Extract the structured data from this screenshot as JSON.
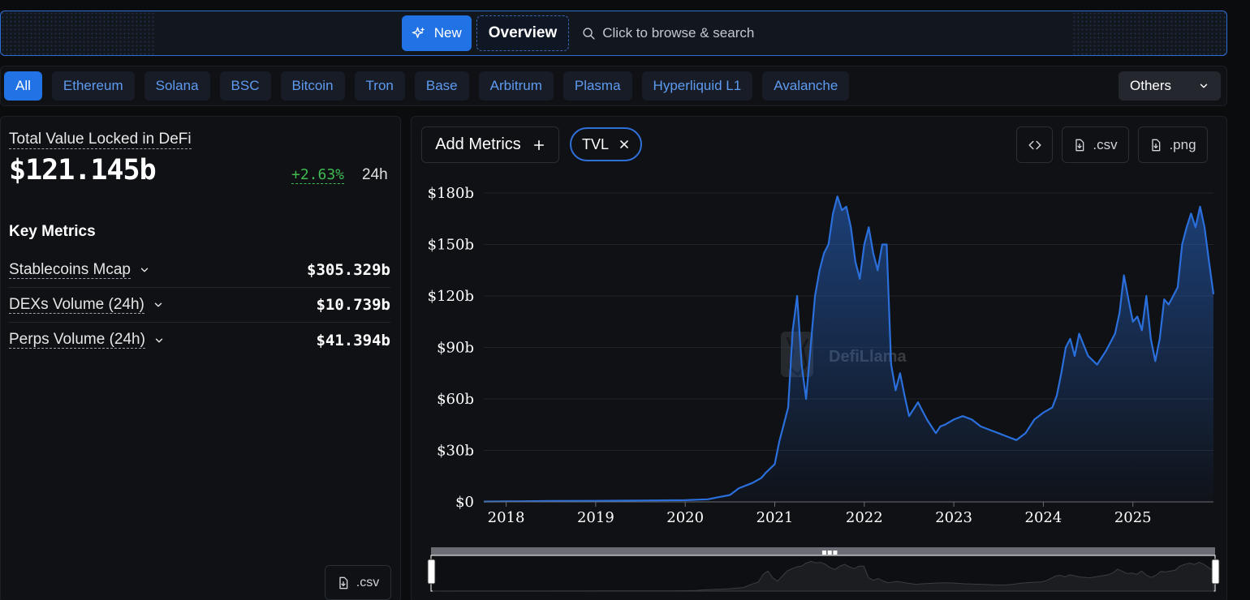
{
  "topbar": {
    "new_label": "New",
    "overview_label": "Overview",
    "search_placeholder": "Click to browse & search"
  },
  "chains": {
    "items": [
      "All",
      "Ethereum",
      "Solana",
      "BSC",
      "Bitcoin",
      "Tron",
      "Base",
      "Arbitrum",
      "Plasma",
      "Hyperliquid L1",
      "Avalanche"
    ],
    "active": "All",
    "others_label": "Others"
  },
  "summary": {
    "tvl_label": "Total Value Locked in DeFi",
    "tvl_value": "$121.145b",
    "change": "+2.63%",
    "change_period": "24h",
    "key_metrics_title": "Key Metrics",
    "metrics": [
      {
        "label": "Stablecoins Mcap",
        "value": "$305.329b"
      },
      {
        "label": "DEXs Volume (24h)",
        "value": "$10.739b"
      },
      {
        "label": "Perps Volume (24h)",
        "value": "$41.394b"
      }
    ],
    "csv_label": ".csv"
  },
  "chart_toolbar": {
    "add_metrics_label": "Add Metrics",
    "selected_metric": "TVL",
    "csv_label": ".csv",
    "png_label": ".png"
  },
  "watermark": "DefiLlama",
  "colors": {
    "accent": "#2172e5",
    "line": "#2a6fdb",
    "positive": "#3fb950",
    "background": "#0b0c0e",
    "panel": "#0f1115"
  },
  "chart_data": {
    "type": "area",
    "series": [
      {
        "x": [
          2017.75,
          2018.0,
          2018.5,
          2019.0,
          2019.5,
          2020.0,
          2020.25,
          2020.5,
          2020.6,
          2020.7,
          2020.75,
          2020.85,
          2020.9,
          2021.0,
          2021.05,
          2021.1,
          2021.15,
          2021.2,
          2021.25,
          2021.3,
          2021.35,
          2021.4,
          2021.45,
          2021.5,
          2021.55,
          2021.6,
          2021.65,
          2021.7,
          2021.75,
          2021.8,
          2021.85,
          2021.9,
          2021.95,
          2022.0,
          2022.05,
          2022.1,
          2022.15,
          2022.2,
          2022.25,
          2022.3,
          2022.35,
          2022.4,
          2022.45,
          2022.5,
          2022.6,
          2022.7,
          2022.8,
          2022.85,
          2022.9,
          2023.0,
          2023.1,
          2023.2,
          2023.3,
          2023.4,
          2023.5,
          2023.6,
          2023.7,
          2023.8,
          2023.9,
          2024.0,
          2024.1,
          2024.15,
          2024.2,
          2024.25,
          2024.3,
          2024.35,
          2024.4,
          2024.5,
          2024.6,
          2024.7,
          2024.8,
          2024.85,
          2024.9,
          2024.95,
          2025.0,
          2025.05,
          2025.1,
          2025.15,
          2025.2,
          2025.25,
          2025.3,
          2025.35,
          2025.4,
          2025.45,
          2025.5,
          2025.55,
          2025.6,
          2025.65,
          2025.7,
          2025.75,
          2025.8,
          2025.85,
          2025.9
        ],
        "y": [
          0.2,
          0.3,
          0.5,
          0.6,
          0.8,
          1.0,
          1.5,
          4,
          8,
          10,
          11,
          14,
          17,
          22,
          35,
          45,
          55,
          100,
          120,
          80,
          60,
          90,
          120,
          135,
          145,
          150,
          168,
          178,
          170,
          172,
          160,
          140,
          130,
          150,
          160,
          145,
          135,
          150,
          150,
          80,
          65,
          75,
          62,
          50,
          58,
          48,
          40,
          44,
          45,
          48,
          50,
          48,
          44,
          42,
          40,
          38,
          36,
          40,
          48,
          52,
          55,
          62,
          75,
          90,
          95,
          85,
          98,
          85,
          80,
          88,
          98,
          110,
          132,
          118,
          105,
          108,
          100,
          120,
          95,
          82,
          95,
          118,
          115,
          120,
          125,
          150,
          160,
          168,
          160,
          172,
          160,
          140,
          121
        ]
      }
    ],
    "xlim": [
      2017.75,
      2025.9
    ],
    "ylim": [
      0,
      180
    ],
    "x_ticks": [
      "2018",
      "2019",
      "2020",
      "2021",
      "2022",
      "2023",
      "2024",
      "2025"
    ],
    "y_ticks": [
      "$0",
      "$30b",
      "$60b",
      "$90b",
      "$120b",
      "$150b",
      "$180b"
    ],
    "grid": true
  }
}
